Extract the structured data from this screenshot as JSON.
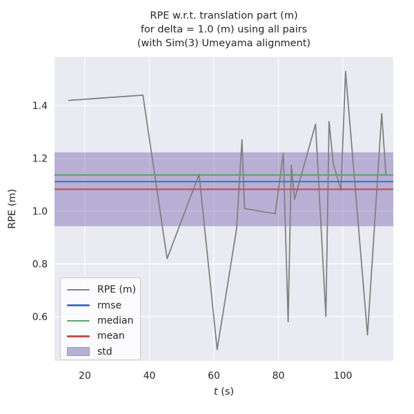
{
  "figure": {
    "title_lines": [
      "RPE w.r.t. translation part (m)",
      "for delta = 1.0 (m) using all pairs",
      "(with Sim(3) Umeyama alignment)"
    ],
    "background": "#ffffff",
    "axes_background": "#eaeaf2",
    "grid_color": "#ffffff",
    "text_color": "#262626"
  },
  "chart_data": {
    "type": "line",
    "title": "RPE w.r.t. translation part (m)\nfor delta = 1.0 (m) using all pairs\n(with Sim(3) Umeyama alignment)",
    "xlabel": "t (s)",
    "ylabel": "RPE (m)",
    "xlim": [
      10.6,
      115.6
    ],
    "ylim": [
      0.432,
      1.585
    ],
    "xticks": [
      20,
      40,
      60,
      80,
      100
    ],
    "yticks": [
      "0.6",
      "0.8",
      "1.0",
      "1.2",
      "1.4"
    ],
    "grid": true,
    "legend_position": "lower left",
    "series": [
      {
        "name": "RPE (m)",
        "color": "#808080",
        "points": [
          [
            15.0,
            1.42
          ],
          [
            38.0,
            1.44
          ],
          [
            45.5,
            0.82
          ],
          [
            55.4,
            1.14
          ],
          [
            61.0,
            0.475
          ],
          [
            67.0,
            0.93
          ],
          [
            68.7,
            1.27
          ],
          [
            69.5,
            1.01
          ],
          [
            79.0,
            0.99
          ],
          [
            81.5,
            1.22
          ],
          [
            83.0,
            0.58
          ],
          [
            84.0,
            1.175
          ],
          [
            85.0,
            1.045
          ],
          [
            91.5,
            1.33
          ],
          [
            94.7,
            0.6
          ],
          [
            95.7,
            1.34
          ],
          [
            97.0,
            1.18
          ],
          [
            99.4,
            1.08
          ],
          [
            100.8,
            1.53
          ],
          [
            107.6,
            0.53
          ],
          [
            112.0,
            1.37
          ],
          [
            113.3,
            1.14
          ]
        ]
      }
    ],
    "stat_lines": [
      {
        "name": "mean",
        "value": 1.083,
        "color": "#c44e52"
      },
      {
        "name": "rmse",
        "value": 1.112,
        "color": "#4c72b0"
      },
      {
        "name": "median",
        "value": 1.137,
        "color": "#55a868"
      }
    ],
    "std_band": {
      "name": "std",
      "lo": 0.943,
      "hi": 1.223,
      "color": "#796bb0",
      "opacity": 0.45
    }
  },
  "legend": {
    "items": [
      {
        "label": "RPE (m)",
        "color": "#808080",
        "kind": "line"
      },
      {
        "label": "rmse",
        "color": "#4c72b0",
        "kind": "line"
      },
      {
        "label": "median",
        "color": "#55a868",
        "kind": "line"
      },
      {
        "label": "mean",
        "color": "#c44e52",
        "kind": "line"
      },
      {
        "label": "std",
        "color": "#b7b0d6",
        "kind": "patch",
        "edge_color": "#9c93c5"
      }
    ]
  },
  "xlabel_parts": {
    "italic": "t",
    "rest": " (s)"
  }
}
